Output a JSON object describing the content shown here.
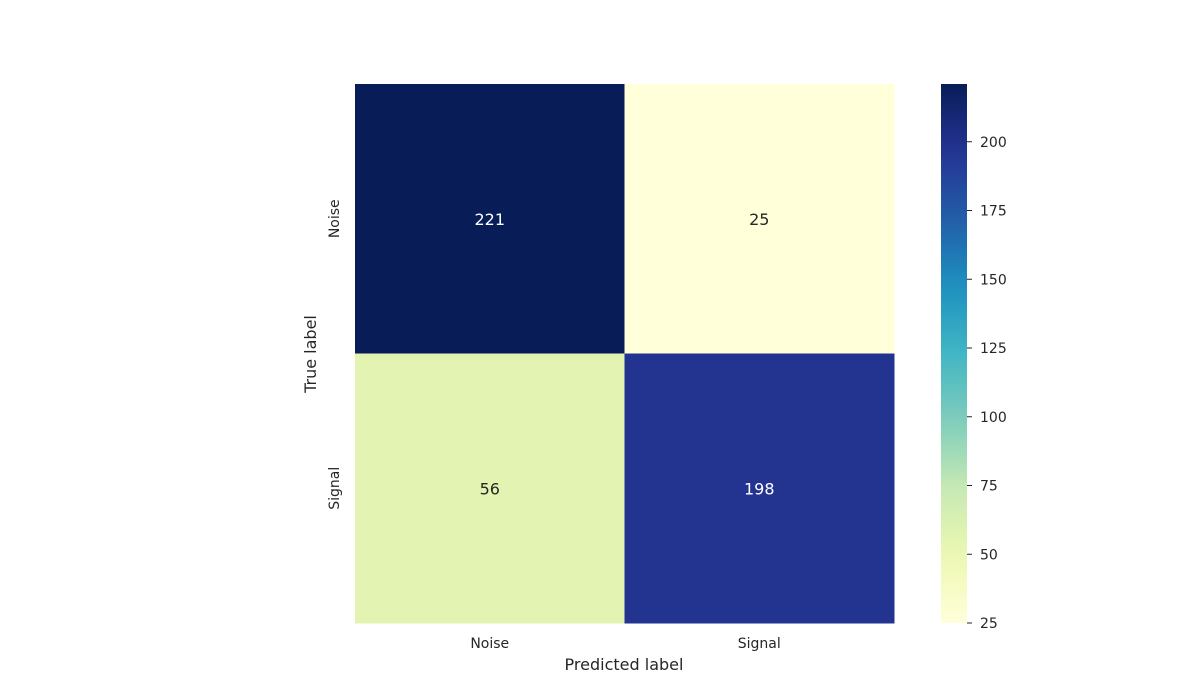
{
  "chart_data": {
    "type": "heatmap",
    "title": "",
    "xlabel": "Predicted label",
    "ylabel": "True label",
    "x_categories": [
      "Noise",
      "Signal"
    ],
    "y_categories": [
      "Noise",
      "Signal"
    ],
    "values": [
      [
        221,
        25
      ],
      [
        56,
        198
      ]
    ],
    "colormap": "YlGnBu",
    "colorbar": {
      "min": 25,
      "max": 221,
      "ticks": [
        25,
        50,
        75,
        100,
        125,
        150,
        175,
        200
      ]
    },
    "grid": false
  }
}
